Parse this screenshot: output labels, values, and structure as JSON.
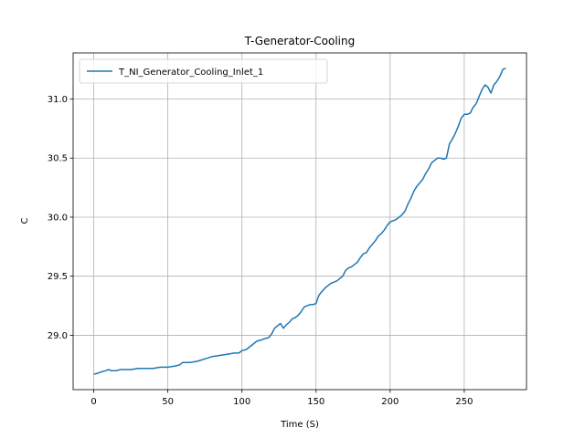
{
  "chart_data": {
    "type": "line",
    "title": "T-Generator-Cooling",
    "xlabel": "Time (S)",
    "ylabel": "C",
    "xlim": [
      -13.9,
      292
    ],
    "ylim": [
      28.54,
      31.39
    ],
    "xticks": [
      0,
      50,
      100,
      150,
      200,
      250
    ],
    "yticks": [
      29.0,
      29.5,
      30.0,
      30.5,
      31.0
    ],
    "xtick_labels": [
      "0",
      "50",
      "100",
      "150",
      "200",
      "250"
    ],
    "ytick_labels": [
      "29.0",
      "29.5",
      "30.0",
      "30.5",
      "31.0"
    ],
    "grid": true,
    "legend_position": "upper left",
    "series": [
      {
        "name": "T_NI_Generator_Cooling_Inlet_1",
        "color": "#1f77b4",
        "x": [
          0,
          3,
          5,
          8,
          10,
          12,
          15,
          18,
          20,
          25,
          30,
          35,
          40,
          45,
          50,
          55,
          58,
          60,
          65,
          70,
          75,
          80,
          85,
          90,
          95,
          98,
          100,
          103,
          105,
          108,
          110,
          113,
          115,
          118,
          120,
          122,
          124,
          126,
          128,
          130,
          132,
          134,
          136,
          138,
          140,
          142,
          144,
          146,
          148,
          150,
          152,
          154,
          156,
          158,
          160,
          162,
          164,
          166,
          168,
          170,
          172,
          174,
          176,
          178,
          180,
          182,
          184,
          186,
          188,
          190,
          192,
          194,
          196,
          198,
          200,
          202,
          204,
          206,
          208,
          210,
          212,
          214,
          216,
          218,
          220,
          222,
          224,
          226,
          228,
          230,
          232,
          234,
          236,
          238,
          240,
          242,
          244,
          246,
          248,
          250,
          252,
          254,
          256,
          258,
          260,
          262,
          264,
          266,
          268,
          270,
          272,
          274,
          276,
          278
        ],
        "y": [
          28.67,
          28.68,
          28.69,
          28.7,
          28.71,
          28.7,
          28.7,
          28.71,
          28.71,
          28.71,
          28.72,
          28.72,
          28.72,
          28.73,
          28.73,
          28.74,
          28.75,
          28.77,
          28.77,
          28.78,
          28.8,
          28.82,
          28.83,
          28.84,
          28.85,
          28.85,
          28.87,
          28.88,
          28.9,
          28.93,
          28.95,
          28.96,
          28.97,
          28.98,
          29.01,
          29.06,
          29.08,
          29.1,
          29.06,
          29.09,
          29.11,
          29.14,
          29.15,
          29.17,
          29.2,
          29.24,
          29.25,
          29.26,
          29.26,
          29.27,
          29.34,
          29.37,
          29.4,
          29.42,
          29.44,
          29.45,
          29.46,
          29.48,
          29.5,
          29.55,
          29.57,
          29.58,
          29.6,
          29.62,
          29.66,
          29.69,
          29.7,
          29.74,
          29.77,
          29.8,
          29.84,
          29.86,
          29.89,
          29.93,
          29.96,
          29.97,
          29.98,
          30.0,
          30.02,
          30.05,
          30.11,
          30.16,
          30.22,
          30.26,
          30.29,
          30.32,
          30.37,
          30.41,
          30.46,
          30.48,
          30.5,
          30.5,
          30.49,
          30.5,
          30.62,
          30.66,
          30.71,
          30.77,
          30.84,
          30.87,
          30.87,
          30.88,
          30.93,
          30.96,
          31.02,
          31.08,
          31.12,
          31.1,
          31.05,
          31.12,
          31.15,
          31.19,
          31.25,
          31.26
        ]
      }
    ]
  }
}
